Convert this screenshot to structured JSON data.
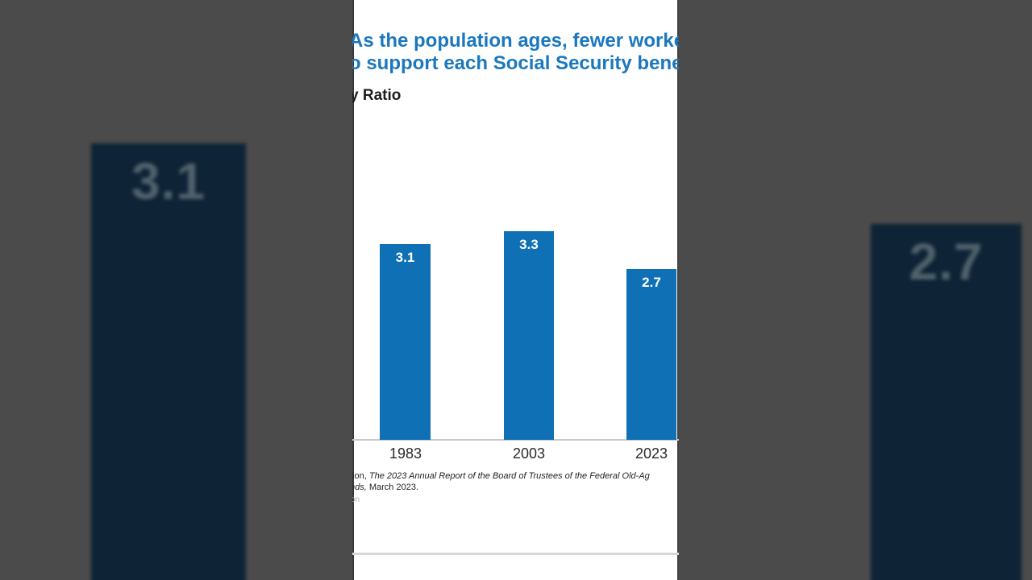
{
  "chart_data": {
    "type": "bar",
    "title_visible_line1": "As the population ages, fewer workers wi",
    "title_visible_line2": "o support each Social Security beneficia",
    "subtitle_visible": "y Ratio",
    "categories": [
      "1983",
      "2003",
      "2023"
    ],
    "values": [
      3.1,
      3.3,
      2.7
    ],
    "value_labels": [
      "3.1",
      "3.3",
      "2.7"
    ],
    "ylim": [
      0,
      3.5
    ],
    "grid": false,
    "legend": false,
    "bar_color": "#0f70b5",
    "title_color": "#1b78be"
  },
  "source_note": {
    "line1_regular": "tion, ",
    "line1_italic": "The 2023 Annual Report of the Board of Trustees of the Federal Old-Ag",
    "line2_italic": "nds,",
    "line2_regular": " March 2023."
  },
  "watermark_fragment": "on",
  "background": {
    "left_ghost_value": "3.1",
    "right_ghost_value": "2.7",
    "panel_color": "#4b4b4b",
    "ghost_bar_color": "#0e2436"
  }
}
